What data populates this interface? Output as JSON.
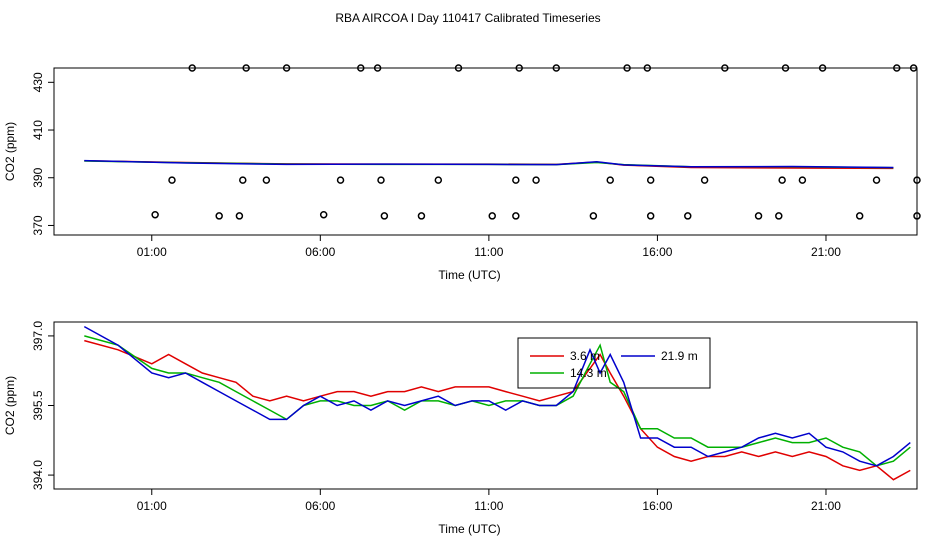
{
  "page": {
    "title": "RBA AIRCOA I  Day 110417  Calibrated Timeseries"
  },
  "chart_data": [
    {
      "type": "line",
      "name": "overview",
      "ylabel": "CO2 (ppm)",
      "xlabel": "Time (UTC)",
      "xlim": [
        -1.9,
        23.7
      ],
      "ylim": [
        366,
        436
      ],
      "xticks": [
        {
          "value": 1,
          "label": "01:00"
        },
        {
          "value": 6,
          "label": "06:00"
        },
        {
          "value": 11,
          "label": "11:00"
        },
        {
          "value": 16,
          "label": "16:00"
        },
        {
          "value": 21,
          "label": "21:00"
        }
      ],
      "yticks": [
        {
          "value": 370,
          "label": "370"
        },
        {
          "value": 390,
          "label": "390"
        },
        {
          "value": 410,
          "label": "410"
        },
        {
          "value": 430,
          "label": "430"
        }
      ],
      "colors": {
        "red": "#e00000",
        "green": "#00b000",
        "blue": "#0000cc",
        "points": "#000000"
      },
      "series": [
        {
          "color": "red",
          "x": [
            -1,
            2,
            5,
            8,
            11,
            13,
            14.2,
            15,
            17,
            20,
            23
          ],
          "y": [
            397.1,
            396.4,
            395.8,
            395.7,
            395.7,
            395.6,
            396.6,
            395.3,
            394.3,
            394.1,
            393.9
          ]
        },
        {
          "color": "green",
          "x": [
            -1,
            2,
            5,
            8,
            11,
            13,
            14.2,
            15,
            17,
            20,
            23
          ],
          "y": [
            397.0,
            396.3,
            395.7,
            395.6,
            395.6,
            395.5,
            396.4,
            395.5,
            394.6,
            394.6,
            394.2
          ]
        },
        {
          "color": "blue",
          "x": [
            -1,
            2,
            5,
            8,
            11,
            13,
            14.2,
            15,
            17,
            20,
            23
          ],
          "y": [
            397.2,
            396.2,
            395.6,
            395.7,
            395.6,
            395.5,
            396.7,
            395.4,
            394.6,
            394.7,
            394.3
          ]
        }
      ],
      "points": [
        {
          "x": 1.1,
          "y": 374.5
        },
        {
          "x": 1.6,
          "y": 389
        },
        {
          "x": 2.2,
          "y": 436
        },
        {
          "x": 3.0,
          "y": 374
        },
        {
          "x": 3.6,
          "y": 374
        },
        {
          "x": 3.7,
          "y": 389
        },
        {
          "x": 3.8,
          "y": 436
        },
        {
          "x": 4.4,
          "y": 389
        },
        {
          "x": 5.0,
          "y": 436
        },
        {
          "x": 6.1,
          "y": 374.5
        },
        {
          "x": 6.6,
          "y": 389
        },
        {
          "x": 7.2,
          "y": 436
        },
        {
          "x": 7.7,
          "y": 436
        },
        {
          "x": 7.8,
          "y": 389
        },
        {
          "x": 7.9,
          "y": 374
        },
        {
          "x": 9.0,
          "y": 374
        },
        {
          "x": 9.5,
          "y": 389
        },
        {
          "x": 10.1,
          "y": 436
        },
        {
          "x": 11.1,
          "y": 374
        },
        {
          "x": 11.8,
          "y": 374
        },
        {
          "x": 11.8,
          "y": 389
        },
        {
          "x": 11.9,
          "y": 436
        },
        {
          "x": 12.4,
          "y": 389
        },
        {
          "x": 13.0,
          "y": 436
        },
        {
          "x": 14.1,
          "y": 374
        },
        {
          "x": 14.6,
          "y": 389
        },
        {
          "x": 15.1,
          "y": 436
        },
        {
          "x": 15.7,
          "y": 436
        },
        {
          "x": 15.8,
          "y": 389
        },
        {
          "x": 15.8,
          "y": 374
        },
        {
          "x": 16.9,
          "y": 374
        },
        {
          "x": 17.4,
          "y": 389
        },
        {
          "x": 18.0,
          "y": 436
        },
        {
          "x": 19.0,
          "y": 374
        },
        {
          "x": 19.6,
          "y": 374
        },
        {
          "x": 19.7,
          "y": 389
        },
        {
          "x": 19.8,
          "y": 436
        },
        {
          "x": 20.3,
          "y": 389
        },
        {
          "x": 20.9,
          "y": 436
        },
        {
          "x": 22.0,
          "y": 374
        },
        {
          "x": 22.5,
          "y": 389
        },
        {
          "x": 23.1,
          "y": 436
        },
        {
          "x": 23.6,
          "y": 436
        },
        {
          "x": 23.7,
          "y": 389
        },
        {
          "x": 23.7,
          "y": 374
        }
      ]
    },
    {
      "type": "line",
      "name": "detail",
      "ylabel": "CO2 (ppm)",
      "xlabel": "Time (UTC)",
      "xlim": [
        -1.9,
        23.7
      ],
      "ylim": [
        393.7,
        397.3
      ],
      "xticks": [
        {
          "value": 1,
          "label": "01:00"
        },
        {
          "value": 6,
          "label": "06:00"
        },
        {
          "value": 11,
          "label": "11:00"
        },
        {
          "value": 16,
          "label": "16:00"
        },
        {
          "value": 21,
          "label": "21:00"
        }
      ],
      "yticks": [
        {
          "value": 394.0,
          "label": "394.0"
        },
        {
          "value": 395.5,
          "label": "395.5"
        },
        {
          "value": 397.0,
          "label": "397.0"
        }
      ],
      "legend": {
        "position": "top-center-right",
        "entries": [
          {
            "label": "3.6 m",
            "color": "red"
          },
          {
            "label": "21.9 m",
            "color": "blue"
          },
          {
            "label": "14.3 m",
            "color": "green"
          }
        ]
      },
      "colors": {
        "red": "#e00000",
        "green": "#00b000",
        "blue": "#0000cc"
      },
      "series": [
        {
          "label": "3.6 m",
          "color": "red",
          "x": [
            -1.0,
            0.0,
            1.0,
            1.5,
            2.0,
            2.5,
            3.0,
            3.5,
            4.0,
            4.5,
            5.0,
            5.5,
            6.0,
            6.5,
            7.0,
            7.5,
            8.0,
            8.5,
            9.0,
            9.5,
            10.0,
            10.5,
            11.0,
            11.5,
            12.0,
            12.5,
            13.0,
            13.5,
            14.0,
            14.3,
            14.6,
            15.0,
            15.5,
            16.0,
            16.5,
            17.0,
            17.5,
            18.0,
            18.5,
            19.0,
            19.5,
            20.0,
            20.5,
            21.0,
            21.5,
            22.0,
            22.5,
            23.0,
            23.5
          ],
          "y": [
            396.9,
            396.7,
            396.4,
            396.6,
            396.4,
            396.2,
            396.1,
            396.0,
            395.7,
            395.6,
            395.7,
            395.6,
            395.7,
            395.8,
            395.8,
            395.7,
            395.8,
            395.8,
            395.9,
            395.8,
            395.9,
            395.9,
            395.9,
            395.8,
            395.7,
            395.6,
            395.7,
            395.8,
            396.3,
            396.6,
            396.2,
            395.7,
            395.0,
            394.6,
            394.4,
            394.3,
            394.4,
            394.4,
            394.5,
            394.4,
            394.5,
            394.4,
            394.5,
            394.4,
            394.2,
            394.1,
            394.2,
            393.9,
            394.1
          ]
        },
        {
          "label": "14.3 m",
          "color": "green",
          "x": [
            -1.0,
            0.0,
            1.0,
            1.5,
            2.0,
            2.5,
            3.0,
            3.5,
            4.0,
            4.5,
            5.0,
            5.5,
            6.0,
            6.5,
            7.0,
            7.5,
            8.0,
            8.5,
            9.0,
            9.5,
            10.0,
            10.5,
            11.0,
            11.5,
            12.0,
            12.5,
            13.0,
            13.5,
            14.0,
            14.3,
            14.6,
            15.0,
            15.5,
            16.0,
            16.5,
            17.0,
            17.5,
            18.0,
            18.5,
            19.0,
            19.5,
            20.0,
            20.5,
            21.0,
            21.5,
            22.0,
            22.5,
            23.0,
            23.5
          ],
          "y": [
            397.0,
            396.8,
            396.3,
            396.2,
            396.2,
            396.1,
            396.0,
            395.8,
            395.6,
            395.4,
            395.2,
            395.5,
            395.6,
            395.6,
            395.5,
            395.5,
            395.6,
            395.4,
            395.6,
            395.6,
            395.5,
            395.6,
            395.5,
            395.6,
            395.6,
            395.5,
            395.5,
            395.7,
            396.4,
            396.8,
            396.0,
            395.8,
            395.0,
            395.0,
            394.8,
            394.8,
            394.6,
            394.6,
            394.6,
            394.7,
            394.8,
            394.7,
            394.7,
            394.8,
            394.6,
            394.5,
            394.2,
            394.3,
            394.6
          ]
        },
        {
          "label": "21.9 m",
          "color": "blue",
          "x": [
            -1.0,
            0.0,
            1.0,
            1.5,
            2.0,
            2.5,
            3.0,
            3.5,
            4.0,
            4.5,
            5.0,
            5.5,
            6.0,
            6.5,
            7.0,
            7.5,
            8.0,
            8.5,
            9.0,
            9.5,
            10.0,
            10.5,
            11.0,
            11.5,
            12.0,
            12.5,
            13.0,
            13.5,
            14.0,
            14.3,
            14.6,
            15.0,
            15.5,
            16.0,
            16.5,
            17.0,
            17.5,
            18.0,
            18.5,
            19.0,
            19.5,
            20.0,
            20.5,
            21.0,
            21.5,
            22.0,
            22.5,
            23.0,
            23.5
          ],
          "y": [
            397.2,
            396.8,
            396.2,
            396.1,
            396.2,
            396.0,
            395.8,
            395.6,
            395.4,
            395.2,
            395.2,
            395.5,
            395.7,
            395.5,
            395.6,
            395.4,
            395.6,
            395.5,
            395.6,
            395.7,
            395.5,
            395.6,
            395.6,
            395.4,
            395.6,
            395.5,
            395.5,
            395.8,
            396.7,
            396.2,
            396.6,
            396.0,
            394.8,
            394.8,
            394.6,
            394.6,
            394.4,
            394.5,
            394.6,
            394.8,
            394.9,
            394.8,
            394.9,
            394.6,
            394.5,
            394.3,
            394.2,
            394.4,
            394.7
          ]
        }
      ]
    }
  ]
}
